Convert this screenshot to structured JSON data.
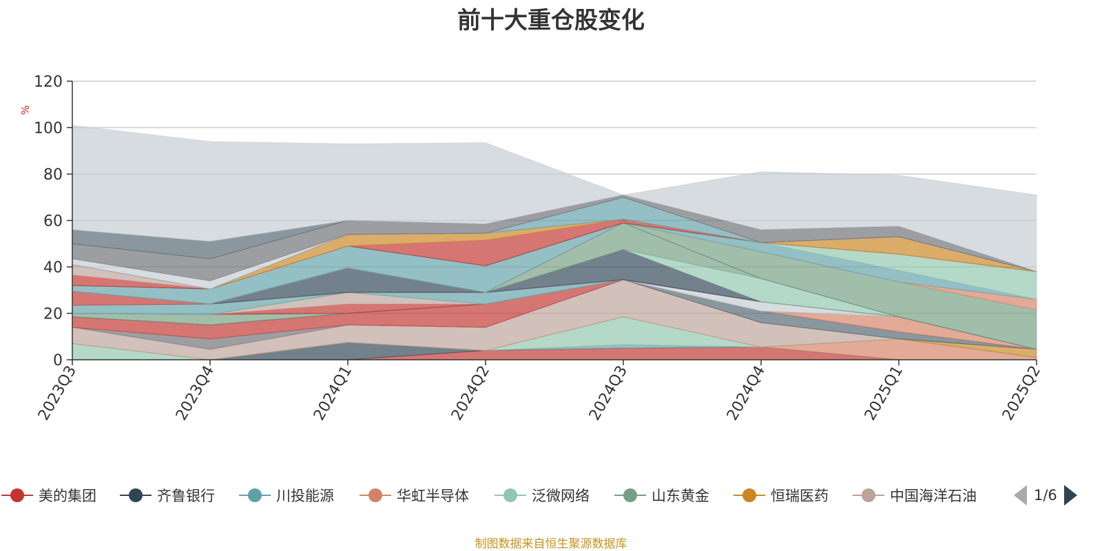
{
  "title": "前十大重仓股变化",
  "source_note": "制图数据来自恒生聚源数据库",
  "pager": {
    "text": "1/6",
    "prev_icon": "triangle-left-icon",
    "next_icon": "triangle-right-icon"
  },
  "legend_items": [
    {
      "label": "美的集团",
      "color": "#c23531"
    },
    {
      "label": "齐鲁银行",
      "color": "#2f4554"
    },
    {
      "label": "川投能源",
      "color": "#61a0a8"
    },
    {
      "label": "华虹半导体",
      "color": "#d48265"
    },
    {
      "label": "泛微网络",
      "color": "#91c7ae"
    },
    {
      "label": "山东黄金",
      "color": "#749f83"
    },
    {
      "label": "恒瑞医药",
      "color": "#ca8622"
    },
    {
      "label": "中国海洋石油",
      "color": "#bda29a"
    }
  ],
  "chart_data": {
    "type": "area",
    "stacked": true,
    "title": "前十大重仓股变化",
    "ylabel": "%",
    "ylim": [
      0,
      120
    ],
    "yticks": [
      0,
      20,
      40,
      60,
      80,
      100,
      120
    ],
    "grid": true,
    "legend_position": "bottom",
    "categories": [
      "2023Q3",
      "2023Q4",
      "2024Q1",
      "2024Q2",
      "2024Q3",
      "2024Q4",
      "2025Q1",
      "2025Q2"
    ],
    "series": [
      {
        "color": "#c23531",
        "values": [
          0,
          0,
          0,
          4,
          5,
          5.5,
          0,
          0
        ]
      },
      {
        "color": "#2f4554",
        "values": [
          0,
          0,
          7.5,
          0,
          0,
          0,
          0,
          0
        ]
      },
      {
        "color": "#61a0a8",
        "values": [
          0,
          0,
          0,
          0,
          1.5,
          0,
          0,
          0
        ]
      },
      {
        "color": "#d48265",
        "values": [
          0,
          0,
          0,
          0,
          0,
          0,
          9,
          1
        ]
      },
      {
        "color": "#91c7ae",
        "values": [
          7,
          0,
          0,
          0,
          12,
          0,
          0,
          0
        ]
      },
      {
        "color": "#749f83",
        "values": [
          0,
          0,
          0,
          0,
          0,
          0,
          0,
          0
        ]
      },
      {
        "color": "#ca8622",
        "values": [
          0,
          0,
          0,
          0,
          0,
          0,
          0,
          3.5
        ]
      },
      {
        "color": "#bda29a",
        "values": [
          7,
          4.5,
          7.5,
          10,
          16,
          10.5,
          0,
          0
        ]
      },
      {
        "color": "#6e7074",
        "values": [
          0,
          4.5,
          0,
          0,
          0,
          0,
          0,
          0
        ]
      },
      {
        "color": "#546570",
        "values": [
          0,
          0,
          0,
          0,
          0,
          5,
          3,
          0
        ]
      },
      {
        "color": "#c4ccd3",
        "values": [
          0,
          0,
          0,
          0,
          0,
          0,
          0,
          0
        ]
      },
      {
        "color": "#c23531",
        "values": [
          4.5,
          6,
          5,
          10,
          0,
          0,
          0,
          0
        ]
      },
      {
        "color": "#2f4554",
        "values": [
          0,
          0,
          0,
          0,
          0,
          0,
          0,
          0
        ]
      },
      {
        "color": "#61a0a8",
        "values": [
          0,
          0,
          0,
          0,
          0,
          0,
          0,
          0
        ]
      },
      {
        "color": "#d48265",
        "values": [
          0,
          0,
          0,
          0,
          0,
          0,
          6.5,
          0
        ]
      },
      {
        "color": "#91c7ae",
        "values": [
          0,
          0,
          0,
          0,
          0,
          0,
          0,
          0
        ]
      },
      {
        "color": "#749f83",
        "values": [
          0,
          0,
          0,
          0,
          0,
          0,
          0,
          0
        ]
      },
      {
        "color": "#bda29a",
        "values": [
          0,
          0,
          0,
          0,
          0,
          0,
          0,
          0
        ]
      },
      {
        "color": "#c4ccd3",
        "values": [
          0,
          0,
          0,
          0,
          0,
          4,
          0,
          0
        ]
      },
      {
        "color": "#6e7074",
        "values": [
          0,
          0,
          0,
          0,
          0,
          0,
          0,
          0
        ]
      },
      {
        "color": "#2f4554",
        "values": [
          0,
          0,
          0,
          0,
          0,
          0,
          0,
          0
        ]
      },
      {
        "color": "#c23531",
        "values": [
          0,
          0,
          0,
          0,
          0,
          0,
          0,
          0
        ]
      },
      {
        "color": "#749f83",
        "values": [
          1.5,
          4.5,
          0,
          0,
          0,
          0,
          0,
          0
        ]
      },
      {
        "color": "#91c7ae",
        "values": [
          0,
          0,
          0,
          0,
          0,
          0,
          0,
          0
        ]
      },
      {
        "color": "#546570",
        "values": [
          0,
          0,
          0,
          0,
          0,
          0,
          0,
          0
        ]
      },
      {
        "color": "#c23531",
        "values": [
          0,
          0,
          4,
          0,
          0,
          0,
          0,
          0
        ]
      },
      {
        "color": "#bda29a",
        "values": [
          0,
          0,
          5,
          0,
          0,
          0,
          0,
          0
        ]
      },
      {
        "color": "#91c7ae",
        "values": [
          0,
          0,
          0,
          0,
          0,
          0,
          0,
          0
        ]
      },
      {
        "color": "#61a0a8",
        "values": [
          3.5,
          4.5,
          0,
          5,
          0,
          0,
          0,
          0
        ]
      },
      {
        "color": "#c23531",
        "values": [
          6,
          0,
          0,
          0,
          0,
          0,
          0,
          0
        ]
      },
      {
        "color": "#bda29a",
        "values": [
          0,
          0,
          0,
          0,
          0,
          0,
          0,
          0
        ]
      },
      {
        "color": "#2f4554",
        "values": [
          0,
          0,
          10.5,
          0,
          13,
          0,
          0,
          0
        ]
      },
      {
        "color": "#91c7ae",
        "values": [
          0,
          0,
          0,
          0,
          0,
          10,
          0,
          0
        ]
      },
      {
        "color": "#749f83",
        "values": [
          0,
          0,
          0,
          0,
          11.5,
          0,
          0,
          0
        ]
      },
      {
        "color": "#2f4554",
        "values": [
          0,
          0,
          0,
          0,
          0,
          0,
          0,
          0
        ]
      },
      {
        "color": "#749f83",
        "values": [
          0,
          0,
          0,
          0,
          0,
          11.5,
          15,
          17
        ]
      },
      {
        "color": "#d48265",
        "values": [
          0,
          0,
          0,
          0,
          0,
          0,
          0,
          4.5
        ]
      },
      {
        "color": "#bda29a",
        "values": [
          0,
          0,
          0,
          0,
          0,
          0,
          0,
          0
        ]
      },
      {
        "color": "#61a0a8",
        "values": [
          2.5,
          6.5,
          9.5,
          11.5,
          0,
          4,
          5,
          0
        ]
      },
      {
        "color": "#91c7ae",
        "values": [
          0,
          0,
          0,
          0,
          0,
          0,
          7,
          12
        ]
      },
      {
        "color": "#2f4554",
        "values": [
          0,
          0,
          0,
          0,
          0,
          0,
          0,
          0
        ]
      },
      {
        "color": "#c23531",
        "values": [
          4.5,
          0,
          0,
          11,
          1.5,
          0,
          0,
          0
        ]
      },
      {
        "color": "#bda29a",
        "values": [
          4.5,
          0,
          0,
          0,
          0,
          0,
          0,
          0
        ]
      },
      {
        "color": "#ca8622",
        "values": [
          0,
          0,
          5,
          3,
          0,
          0,
          7.5,
          0
        ]
      },
      {
        "color": "#d48265",
        "values": [
          0,
          0,
          0,
          0,
          0,
          0,
          0,
          0
        ]
      },
      {
        "color": "#61a0a8",
        "values": [
          0,
          0,
          0,
          0,
          9.5,
          0,
          0,
          0
        ]
      },
      {
        "color": "#2f4554",
        "values": [
          0,
          0,
          0,
          0,
          0,
          0,
          0,
          0
        ]
      },
      {
        "color": "#c4ccd3",
        "values": [
          2.5,
          3.5,
          0,
          0,
          0,
          0,
          0,
          0
        ]
      },
      {
        "color": "#6e7074",
        "values": [
          6.5,
          9.5,
          6,
          4,
          1,
          5.5,
          4.5,
          0
        ]
      },
      {
        "color": "#546570",
        "values": [
          6,
          7.5,
          0,
          0,
          0,
          0,
          0,
          0
        ]
      },
      {
        "color": "#c4ccd3",
        "values": [
          45,
          43,
          33,
          35,
          0,
          25,
          22,
          33
        ]
      }
    ]
  }
}
